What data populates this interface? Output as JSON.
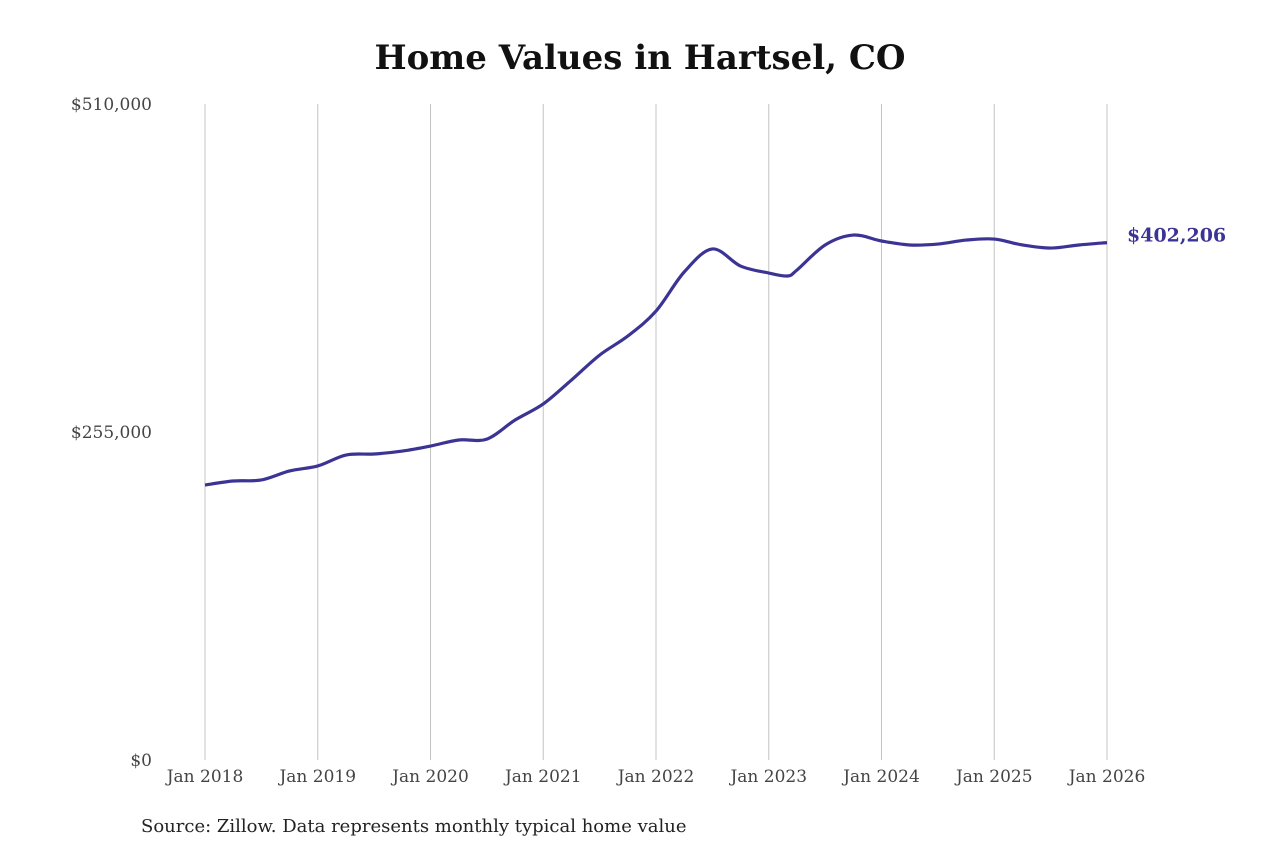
{
  "chart_data": {
    "type": "line",
    "title": "Home Values in Hartsel, CO",
    "source": "Source: Zillow. Data represents monthly typical home value",
    "xlabel": "",
    "ylabel": "",
    "ylim": [
      0,
      510000
    ],
    "y_ticks": [
      0,
      255000,
      510000
    ],
    "y_tick_labels": [
      "$0",
      "$255,000",
      "$510,000"
    ],
    "x_ticks": [
      "2018-01",
      "2019-01",
      "2020-01",
      "2021-01",
      "2022-01",
      "2023-01",
      "2024-01",
      "2025-01",
      "2026-01"
    ],
    "x_tick_labels": [
      "Jan 2018",
      "Jan 2019",
      "Jan 2020",
      "Jan 2021",
      "Jan 2022",
      "Jan 2023",
      "Jan 2024",
      "Jan 2025",
      "Jan 2026"
    ],
    "grid": "vertical",
    "line_color": "#3b3494",
    "end_label": "$402,206",
    "series": [
      {
        "x": [
          "2018-01",
          "2018-04",
          "2018-07",
          "2018-10",
          "2019-01",
          "2019-04",
          "2019-07",
          "2019-10",
          "2020-01",
          "2020-04",
          "2020-07",
          "2020-10",
          "2021-01",
          "2021-04",
          "2021-07",
          "2021-10",
          "2022-01",
          "2022-04",
          "2022-07",
          "2022-10",
          "2023-01",
          "2023-03",
          "2023-04",
          "2023-07",
          "2023-10",
          "2024-01",
          "2024-04",
          "2024-07",
          "2024-10",
          "2025-01",
          "2025-04",
          "2025-07",
          "2025-10",
          "2026-01"
        ],
        "values": [
          213800,
          216900,
          217700,
          224700,
          228600,
          237100,
          237900,
          240200,
          244100,
          248800,
          249500,
          264300,
          276800,
          295400,
          314800,
          329600,
          349000,
          379400,
          397300,
          384000,
          378600,
          376300,
          380900,
          400400,
          408100,
          403500,
          400400,
          401100,
          404200,
          405000,
          400400,
          398000,
          400400,
          402206
        ]
      }
    ]
  }
}
